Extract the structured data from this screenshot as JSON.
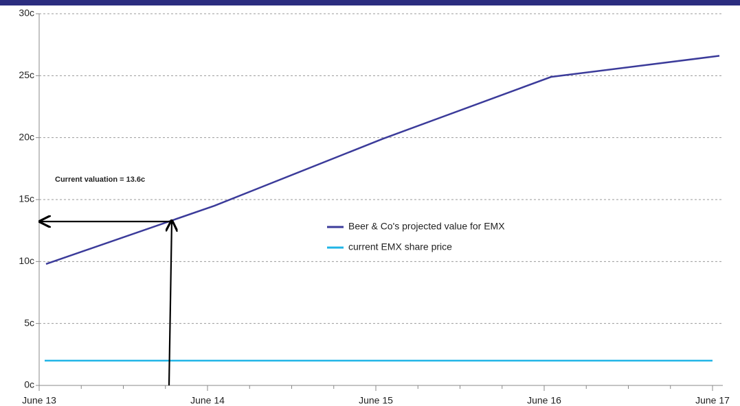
{
  "chart_data": {
    "type": "line",
    "annotation": "Current valuation = 13.6c",
    "categories": [
      "June 13",
      "June 14",
      "June 15",
      "June 16",
      "June 17"
    ],
    "series": [
      {
        "name": "Beer & Co's projected value for EMX",
        "color": "#3b3b9a",
        "values": [
          9.8,
          14.5,
          19.9,
          24.9,
          26.6
        ]
      },
      {
        "name": "current EMX share price",
        "color": "#1fb4e6",
        "values": [
          2.0,
          2.0,
          2.0,
          2.0,
          2.0
        ]
      }
    ],
    "ylim": [
      0,
      30
    ],
    "yticks": [
      {
        "value": 0,
        "label": "0c"
      },
      {
        "value": 5,
        "label": "5c"
      },
      {
        "value": 10,
        "label": "10c"
      },
      {
        "value": 15,
        "label": "15c"
      },
      {
        "value": 20,
        "label": "20c"
      },
      {
        "value": 25,
        "label": "25c"
      },
      {
        "value": 30,
        "label": "30c"
      }
    ],
    "grid": true
  }
}
